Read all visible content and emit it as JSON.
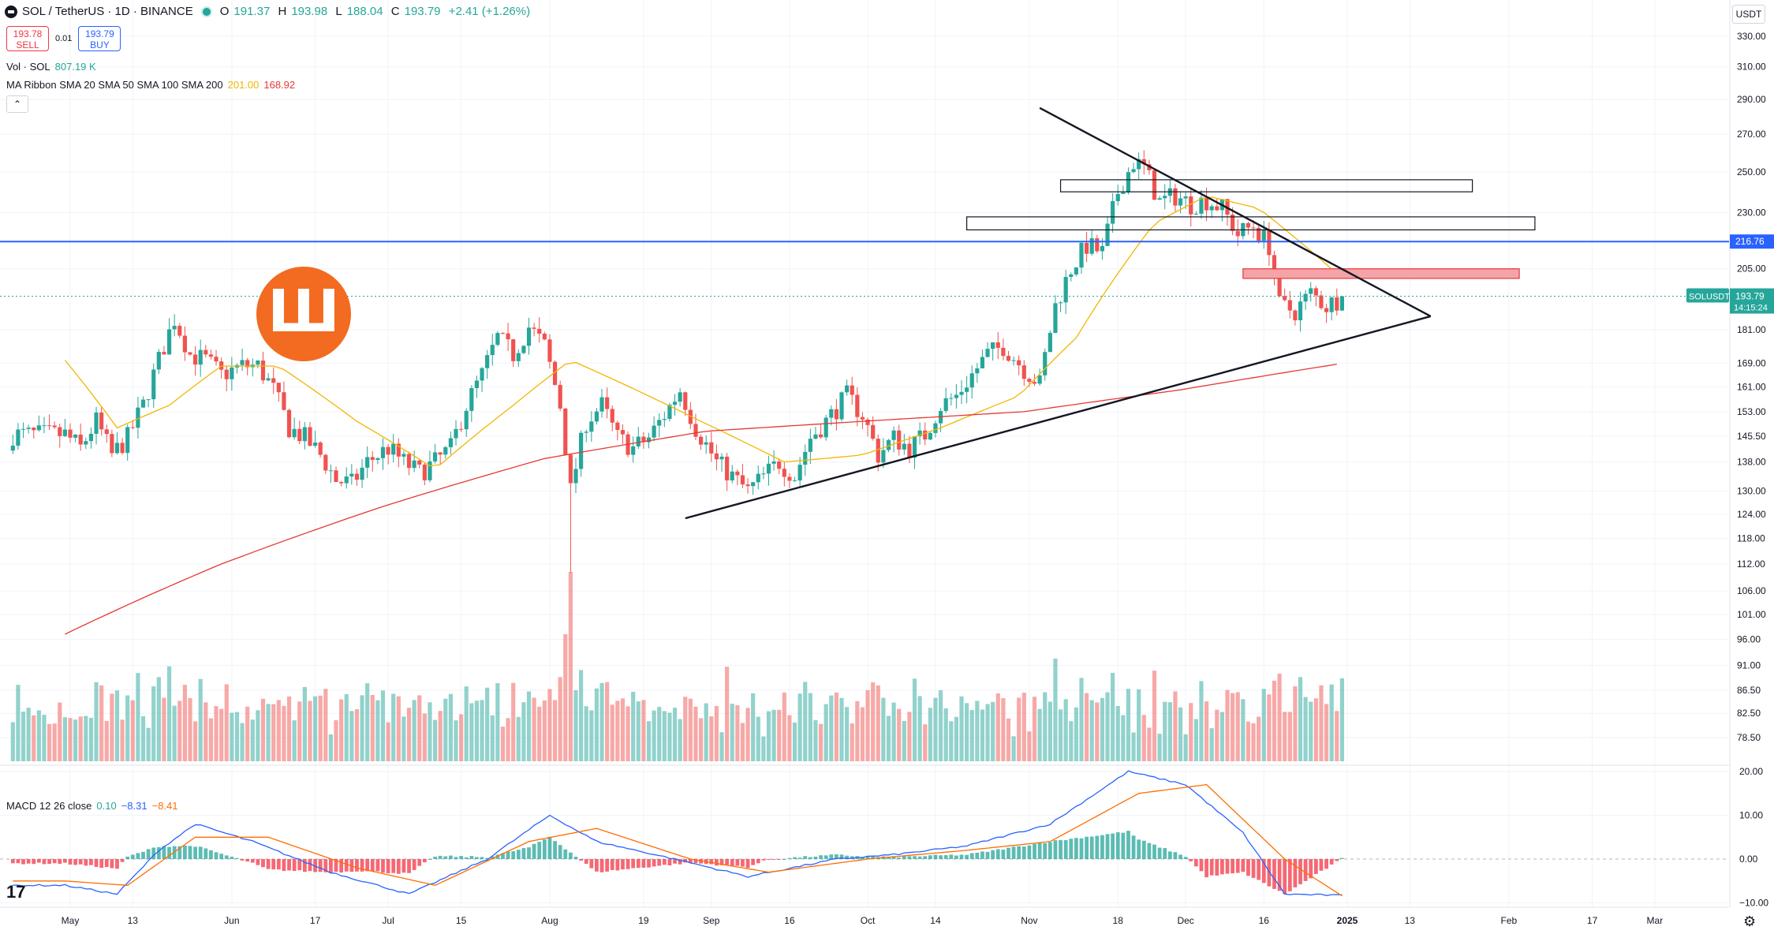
{
  "header": {
    "symbol": "SOL / TetherUS · 1D · BINANCE",
    "ohlc": [
      {
        "k": "O",
        "v": "191.37"
      },
      {
        "k": "H",
        "v": "193.98"
      },
      {
        "k": "L",
        "v": "188.04"
      },
      {
        "k": "C",
        "v": "193.79"
      },
      {
        "k": "",
        "v": "+2.41 (+1.26%)"
      }
    ],
    "status_color": "#26a69a"
  },
  "trade": {
    "sell_price": "193.78",
    "sell_label": "SELL",
    "spread": "0.01",
    "buy_price": "193.79",
    "buy_label": "BUY"
  },
  "indicators": {
    "volume_label": "Vol · SOL",
    "volume_value": "807.19 K",
    "ma_label": "MA Ribbon SMA 20 SMA 50 SMA 100 SMA 200",
    "ma_value1": "201.00",
    "ma_value2": "168.92",
    "macd_label": "MACD 12 26 close",
    "macd_v1": "0.10",
    "macd_v2": "−8.31",
    "macd_v3": "−8.41"
  },
  "toolbar": {
    "collapse_icon": "chevron-up-icon",
    "currency": "USDT",
    "settings_icon": "gear-icon"
  },
  "brand": {
    "glyph": "Ш",
    "color": "#f26b21"
  },
  "colors": {
    "up": "#26a69a",
    "down": "#ef5350",
    "sma20": "#f2b700",
    "sma200": "#e53935",
    "hline": "#2962ff",
    "zone": "#f4a4a9",
    "macd": "#2962ff",
    "signal": "#ff6d00"
  },
  "chart_data": {
    "type": "candlestick",
    "symbol": "SOLUSDT",
    "interval": "1D",
    "y_axis_scale": "log",
    "y_ticks": [
      "330.00",
      "310.00",
      "290.00",
      "270.00",
      "250.00",
      "230.00",
      "216.76",
      "205.00",
      "193.79",
      "181.00",
      "169.00",
      "161.00",
      "153.00",
      "145.50",
      "138.00",
      "130.00",
      "124.00",
      "118.00",
      "112.00",
      "106.00",
      "101.00",
      "96.00",
      "91.00",
      "86.50",
      "82.50",
      "78.50"
    ],
    "x_ticks": [
      "May",
      "13",
      "Jun",
      "17",
      "Jul",
      "15",
      "Aug",
      "19",
      "Sep",
      "16",
      "Oct",
      "14",
      "Nov",
      "18",
      "Dec",
      "16",
      "2025",
      "13",
      "Feb",
      "17",
      "Mar"
    ],
    "last_price": {
      "symbol": "SOLUSDT",
      "value": "193.79",
      "countdown": "14:15:24"
    },
    "horizontal_line": {
      "value": "216.76",
      "color": "#2962ff"
    },
    "macd_ticks": [
      "20.00",
      "10.00",
      "0.00",
      "−10.00"
    ],
    "anchors": [
      [
        "2024-04-30",
        146
      ],
      [
        "2024-05-03",
        142
      ],
      [
        "2024-05-06",
        150
      ],
      [
        "2024-05-09",
        140
      ],
      [
        "2024-05-12",
        145
      ],
      [
        "2024-05-15",
        155
      ],
      [
        "2024-05-18",
        170
      ],
      [
        "2024-05-21",
        185
      ],
      [
        "2024-05-24",
        172
      ],
      [
        "2024-05-27",
        170
      ],
      [
        "2024-05-30",
        165
      ],
      [
        "2024-06-03",
        168
      ],
      [
        "2024-06-06",
        168
      ],
      [
        "2024-06-09",
        160
      ],
      [
        "2024-06-12",
        148
      ],
      [
        "2024-06-15",
        145
      ],
      [
        "2024-06-18",
        140
      ],
      [
        "2024-06-21",
        133
      ],
      [
        "2024-06-24",
        132
      ],
      [
        "2024-06-27",
        138
      ],
      [
        "2024-07-01",
        142
      ],
      [
        "2024-07-04",
        138
      ],
      [
        "2024-07-07",
        135
      ],
      [
        "2024-07-10",
        138
      ],
      [
        "2024-07-13",
        142
      ],
      [
        "2024-07-16",
        155
      ],
      [
        "2024-07-19",
        165
      ],
      [
        "2024-07-22",
        178
      ],
      [
        "2024-07-25",
        172
      ],
      [
        "2024-07-28",
        182
      ],
      [
        "2024-07-31",
        175
      ],
      [
        "2024-08-03",
        155
      ],
      [
        "2024-08-05",
        130
      ],
      [
        "2024-08-08",
        150
      ],
      [
        "2024-08-11",
        155
      ],
      [
        "2024-08-14",
        145
      ],
      [
        "2024-08-17",
        142
      ],
      [
        "2024-08-20",
        145
      ],
      [
        "2024-08-23",
        152
      ],
      [
        "2024-08-26",
        160
      ],
      [
        "2024-08-29",
        148
      ],
      [
        "2024-09-02",
        138
      ],
      [
        "2024-09-05",
        134
      ],
      [
        "2024-09-08",
        130
      ],
      [
        "2024-09-11",
        134
      ],
      [
        "2024-09-14",
        138
      ],
      [
        "2024-09-17",
        134
      ],
      [
        "2024-09-20",
        145
      ],
      [
        "2024-09-23",
        150
      ],
      [
        "2024-09-27",
        158
      ],
      [
        "2024-09-30",
        152
      ],
      [
        "2024-10-03",
        140
      ],
      [
        "2024-10-06",
        145
      ],
      [
        "2024-10-09",
        142
      ],
      [
        "2024-10-12",
        146
      ],
      [
        "2024-10-15",
        155
      ],
      [
        "2024-10-18",
        158
      ],
      [
        "2024-10-21",
        165
      ],
      [
        "2024-10-24",
        172
      ],
      [
        "2024-10-27",
        175
      ],
      [
        "2024-10-31",
        167
      ],
      [
        "2024-11-03",
        162
      ],
      [
        "2024-11-06",
        190
      ],
      [
        "2024-11-09",
        205
      ],
      [
        "2024-11-12",
        215
      ],
      [
        "2024-11-15",
        212
      ],
      [
        "2024-11-18",
        240
      ],
      [
        "2024-11-21",
        255
      ],
      [
        "2024-11-23",
        252
      ],
      [
        "2024-11-26",
        235
      ],
      [
        "2024-11-29",
        238
      ],
      [
        "2024-12-02",
        234
      ],
      [
        "2024-12-05",
        236
      ],
      [
        "2024-12-08",
        232
      ],
      [
        "2024-12-11",
        220
      ],
      [
        "2024-12-14",
        224
      ],
      [
        "2024-12-17",
        215
      ],
      [
        "2024-12-19",
        190
      ],
      [
        "2024-12-22",
        188
      ],
      [
        "2024-12-25",
        195
      ],
      [
        "2024-12-28",
        190
      ],
      [
        "2024-12-31",
        193.79
      ]
    ],
    "sma20_anchors": [
      [
        "2024-04-30",
        170
      ],
      [
        "2024-05-10",
        148
      ],
      [
        "2024-05-20",
        155
      ],
      [
        "2024-05-30",
        168
      ],
      [
        "2024-06-10",
        168
      ],
      [
        "2024-06-25",
        150
      ],
      [
        "2024-07-10",
        136
      ],
      [
        "2024-07-25",
        155
      ],
      [
        "2024-08-05",
        170
      ],
      [
        "2024-08-20",
        158
      ],
      [
        "2024-08-30",
        150
      ],
      [
        "2024-09-15",
        138
      ],
      [
        "2024-09-30",
        140
      ],
      [
        "2024-10-15",
        148
      ],
      [
        "2024-10-30",
        158
      ],
      [
        "2024-11-10",
        178
      ],
      [
        "2024-11-25",
        225
      ],
      [
        "2024-12-05",
        238
      ],
      [
        "2024-12-15",
        232
      ],
      [
        "2024-12-31",
        201
      ]
    ],
    "sma200_anchors": [
      [
        "2024-04-30",
        97
      ],
      [
        "2024-05-30",
        112
      ],
      [
        "2024-06-30",
        126
      ],
      [
        "2024-07-31",
        139
      ],
      [
        "2024-08-31",
        147
      ],
      [
        "2024-09-30",
        150
      ],
      [
        "2024-10-31",
        153
      ],
      [
        "2024-11-30",
        160
      ],
      [
        "2024-12-31",
        168.92
      ]
    ],
    "macd_anchors": [
      [
        "2024-04-30",
        -6
      ],
      [
        "2024-05-10",
        -8
      ],
      [
        "2024-05-18",
        2
      ],
      [
        "2024-05-25",
        8
      ],
      [
        "2024-06-05",
        4
      ],
      [
        "2024-06-20",
        -3
      ],
      [
        "2024-07-05",
        -8
      ],
      [
        "2024-07-20",
        0
      ],
      [
        "2024-08-01",
        10
      ],
      [
        "2024-08-10",
        4
      ],
      [
        "2024-08-25",
        0
      ],
      [
        "2024-09-08",
        -4
      ],
      [
        "2024-09-25",
        0
      ],
      [
        "2024-10-06",
        1
      ],
      [
        "2024-10-20",
        3
      ],
      [
        "2024-11-05",
        8
      ],
      [
        "2024-11-20",
        20
      ],
      [
        "2024-12-01",
        17
      ],
      [
        "2024-12-12",
        6
      ],
      [
        "2024-12-20",
        -8
      ],
      [
        "2024-12-31",
        -8.31
      ]
    ],
    "signal_anchors": [
      [
        "2024-04-30",
        -5
      ],
      [
        "2024-05-12",
        -6
      ],
      [
        "2024-05-25",
        5
      ],
      [
        "2024-06-08",
        5
      ],
      [
        "2024-06-25",
        -2
      ],
      [
        "2024-07-10",
        -6
      ],
      [
        "2024-07-28",
        4
      ],
      [
        "2024-08-10",
        7
      ],
      [
        "2024-08-28",
        0
      ],
      [
        "2024-09-12",
        -3
      ],
      [
        "2024-10-01",
        0
      ],
      [
        "2024-10-20",
        2
      ],
      [
        "2024-11-05",
        4
      ],
      [
        "2024-11-22",
        15
      ],
      [
        "2024-12-05",
        17
      ],
      [
        "2024-12-20",
        0
      ],
      [
        "2024-12-31",
        -8.41
      ]
    ],
    "zones": [
      {
        "from": "2024-11-07",
        "to": "2025-01-25",
        "low": 240,
        "high": 246,
        "fill": "none"
      },
      {
        "from": "2024-10-20",
        "to": "2025-02-06",
        "low": 222,
        "high": 228,
        "fill": "none"
      },
      {
        "from": "2024-12-12",
        "to": "2025-02-03",
        "low": 201,
        "high": 205,
        "fill": "#f4a4a9"
      }
    ],
    "trendlines": [
      {
        "from": [
          "2024-11-03",
          285
        ],
        "to": [
          "2025-01-17",
          186
        ]
      },
      {
        "from": [
          "2024-08-27",
          123
        ],
        "to": [
          "2025-01-17",
          186
        ]
      }
    ]
  }
}
